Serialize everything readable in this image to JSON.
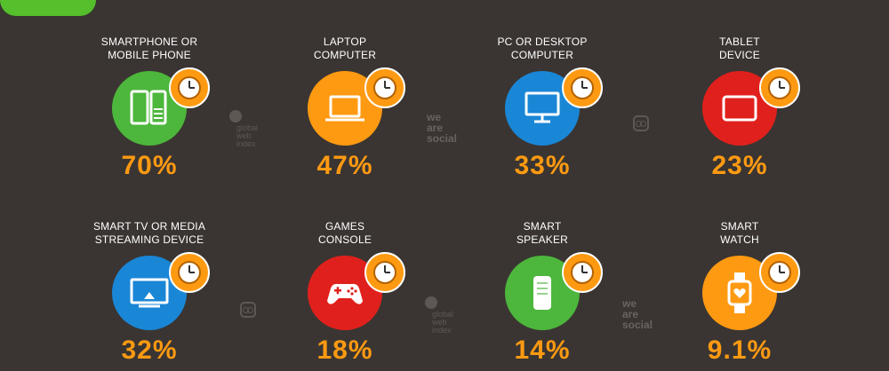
{
  "devices": [
    {
      "label_lines": [
        "SMARTPHONE OR",
        "MOBILE PHONE"
      ],
      "value": "70%",
      "color": "#4db63c",
      "icon": "smartphone-icon"
    },
    {
      "label_lines": [
        "LAPTOP",
        "COMPUTER"
      ],
      "value": "47%",
      "color": "#fe9a12",
      "icon": "laptop-icon"
    },
    {
      "label_lines": [
        "PC OR DESKTOP",
        "COMPUTER"
      ],
      "value": "33%",
      "color": "#1a86d6",
      "icon": "desktop-icon"
    },
    {
      "label_lines": [
        "TABLET",
        "DEVICE"
      ],
      "value": "23%",
      "color": "#e0201c",
      "icon": "tablet-icon"
    },
    {
      "label_lines": [
        "SMART TV OR MEDIA",
        "STREAMING DEVICE"
      ],
      "value": "32%",
      "color": "#1a86d6",
      "icon": "tv-icon"
    },
    {
      "label_lines": [
        "GAMES",
        "CONSOLE"
      ],
      "value": "18%",
      "color": "#e0201c",
      "icon": "gamepad-icon"
    },
    {
      "label_lines": [
        "SMART",
        "SPEAKER"
      ],
      "value": "14%",
      "color": "#4db63c",
      "icon": "speaker-icon"
    },
    {
      "label_lines": [
        "SMART",
        "WATCH"
      ],
      "value": "9.1%",
      "color": "#fe9a12",
      "icon": "smartwatch-icon"
    }
  ],
  "watermarks": {
    "we_are_social": [
      "we",
      "are",
      "social"
    ],
    "gwi": [
      "global",
      "web",
      "index"
    ]
  },
  "colors": {
    "background": "#3a3532",
    "accent_orange": "#fe9a12",
    "brand_green": "#55bf2c"
  }
}
